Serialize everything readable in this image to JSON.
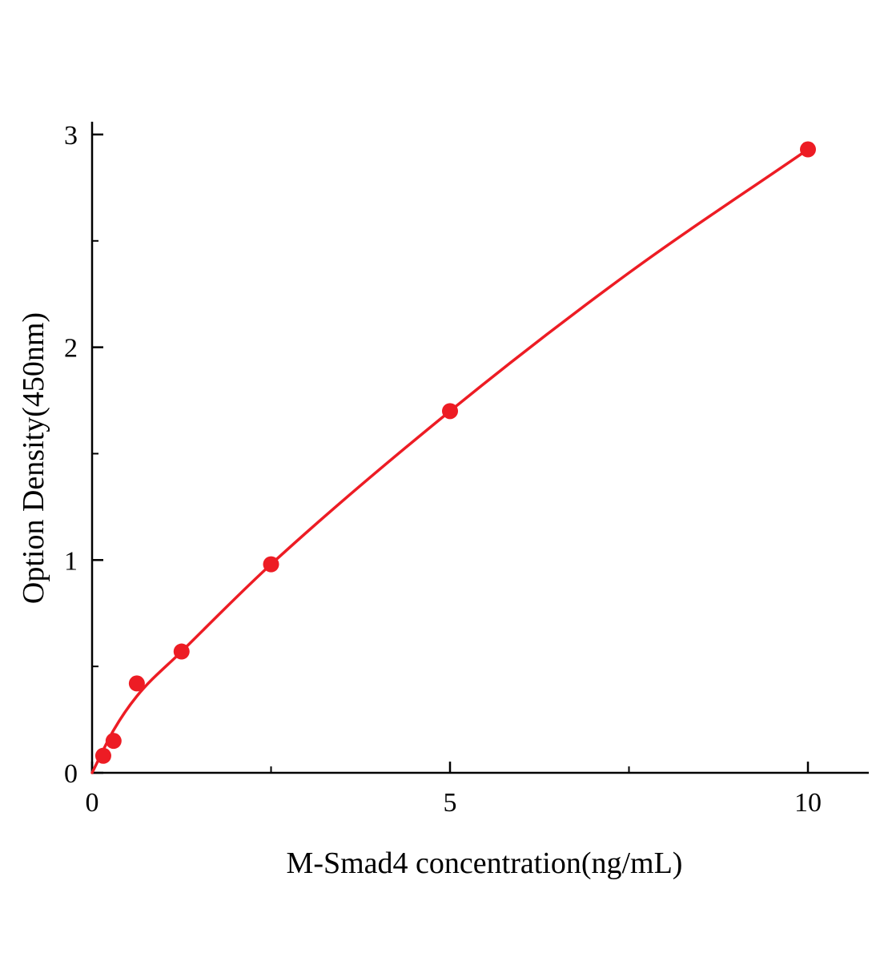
{
  "chart_data": {
    "type": "scatter",
    "title": "",
    "xlabel": "M-Smad4 concentration(ng/mL)",
    "ylabel": "Option Density(450nm)",
    "points": {
      "x": [
        0.156,
        0.3,
        0.625,
        1.25,
        2.5,
        5,
        10
      ],
      "y": [
        0.08,
        0.15,
        0.42,
        0.57,
        0.98,
        1.7,
        2.93
      ]
    },
    "fit_curve": {
      "x": [
        0,
        0.3,
        0.625,
        1.25,
        2.5,
        5,
        7.5,
        10
      ],
      "y": [
        0,
        0.2,
        0.36,
        0.57,
        0.98,
        1.7,
        2.35,
        2.93
      ]
    },
    "xlim": [
      0,
      10.85
    ],
    "ylim": [
      0,
      3.06
    ],
    "x_major_ticks": [
      0,
      5,
      10
    ],
    "x_minor_ticks": [
      2.5,
      7.5
    ],
    "y_major_ticks": [
      0,
      1,
      2,
      3
    ],
    "y_minor_ticks": [
      0.5,
      1.5,
      2.5
    ],
    "color": "#ed1c24",
    "axis_color": "#000000",
    "marker_radius": 10,
    "line_width": 3.5,
    "grid": false,
    "legend": null
  }
}
